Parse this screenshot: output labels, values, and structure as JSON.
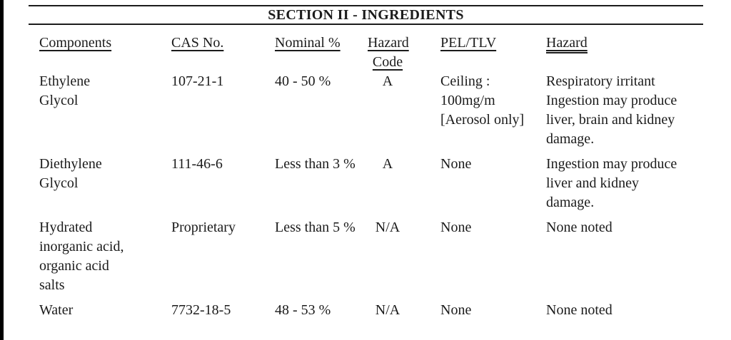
{
  "document": {
    "section_title": "SECTION II - INGREDIENTS"
  },
  "colors": {
    "text": "#1b1b1b",
    "background": "#ffffff",
    "scan_edge_bar": "#000000"
  },
  "ingredients_table": {
    "headers": [
      {
        "id": "components",
        "lines": [
          "Components"
        ],
        "double_underline": false
      },
      {
        "id": "cas-no",
        "lines": [
          "CAS No."
        ],
        "double_underline": false
      },
      {
        "id": "nominal-pct",
        "lines": [
          "Nominal %"
        ],
        "double_underline": false
      },
      {
        "id": "hazard-code",
        "lines": [
          "Hazard",
          "Code"
        ],
        "double_underline": false
      },
      {
        "id": "pel-tlv",
        "lines": [
          "PEL/TLV"
        ],
        "double_underline": false
      },
      {
        "id": "hazard",
        "lines": [
          "Hazard"
        ],
        "double_underline": true
      }
    ],
    "rows": [
      {
        "components": [
          "Ethylene",
          "Glycol"
        ],
        "cas_no": [
          "107-21-1"
        ],
        "nominal_pct": [
          "40 - 50 %"
        ],
        "hazard_code": [
          "A"
        ],
        "pel_tlv": [
          "Ceiling :",
          "100mg/m",
          "[Aerosol only]"
        ],
        "hazard": [
          "Respiratory irritant",
          "Ingestion may produce",
          "liver, brain and kidney",
          "damage."
        ]
      },
      {
        "components": [
          "Diethylene",
          "Glycol"
        ],
        "cas_no": [
          "111-46-6"
        ],
        "nominal_pct": [
          "Less than 3 %"
        ],
        "hazard_code": [
          "A"
        ],
        "pel_tlv": [
          "None"
        ],
        "hazard": [
          "Ingestion may produce",
          "liver and kidney",
          "damage."
        ]
      },
      {
        "components": [
          "Hydrated",
          "inorganic acid,",
          "organic acid",
          "salts"
        ],
        "cas_no": [
          "Proprietary"
        ],
        "nominal_pct": [
          "Less than 5 %"
        ],
        "hazard_code": [
          "N/A"
        ],
        "pel_tlv": [
          "None"
        ],
        "hazard": [
          "None noted"
        ]
      },
      {
        "components": [
          "Water"
        ],
        "cas_no": [
          "7732-18-5"
        ],
        "nominal_pct": [
          "48 - 53 %"
        ],
        "hazard_code": [
          "N/A"
        ],
        "pel_tlv": [
          "None"
        ],
        "hazard": [
          "None noted"
        ]
      }
    ]
  }
}
